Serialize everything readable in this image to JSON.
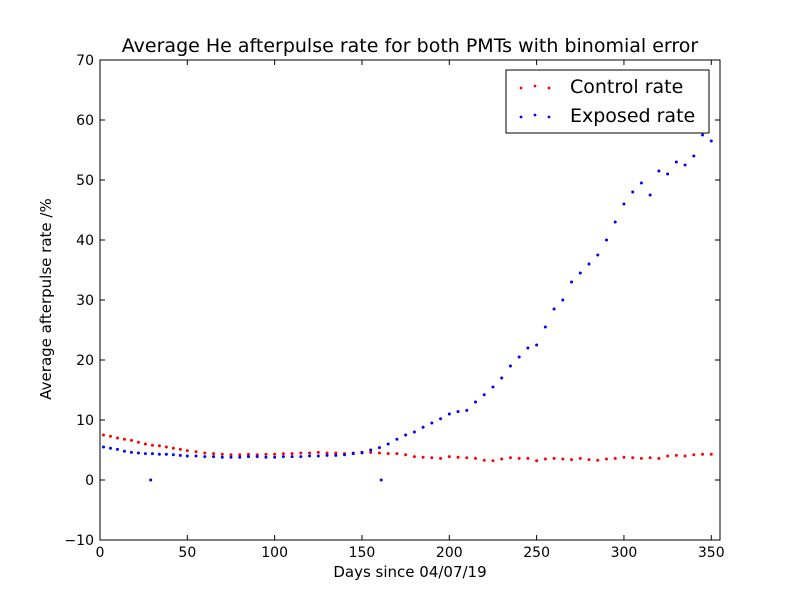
{
  "chart_data": {
    "type": "scatter",
    "title": "Average He afterpulse rate for both PMTs with binomial error",
    "xlabel": "Days since 04/07/19",
    "ylabel": "Average afterpulse rate /%",
    "xlim": [
      0,
      355
    ],
    "ylim": [
      -10,
      70
    ],
    "x_ticks": [
      0,
      50,
      100,
      150,
      200,
      250,
      300,
      350
    ],
    "y_ticks": [
      -10,
      0,
      10,
      20,
      30,
      40,
      50,
      60,
      70
    ],
    "x_tick_labels": [
      "0",
      "50",
      "100",
      "150",
      "200",
      "250",
      "300",
      "350"
    ],
    "y_tick_labels": [
      "−10",
      "0",
      "10",
      "20",
      "30",
      "40",
      "50",
      "60",
      "70"
    ],
    "grid": false,
    "legend_position": "top-right",
    "series": [
      {
        "name": "Control rate",
        "color": "#ff0000",
        "x": [
          2,
          6,
          10,
          14,
          18,
          22,
          26,
          30,
          34,
          38,
          42,
          46,
          50,
          55,
          60,
          65,
          70,
          75,
          80,
          85,
          90,
          95,
          100,
          105,
          110,
          115,
          120,
          125,
          130,
          135,
          140,
          145,
          150,
          155,
          160,
          165,
          170,
          175,
          180,
          185,
          190,
          195,
          200,
          205,
          210,
          215,
          220,
          225,
          230,
          235,
          240,
          245,
          250,
          255,
          260,
          265,
          270,
          275,
          280,
          285,
          290,
          295,
          300,
          305,
          310,
          315,
          320,
          325,
          330,
          335,
          340,
          345,
          350
        ],
        "y": [
          7.5,
          7.3,
          7.0,
          6.8,
          6.6,
          6.3,
          6.0,
          5.8,
          5.7,
          5.5,
          5.3,
          5.1,
          4.9,
          4.7,
          4.5,
          4.4,
          4.3,
          4.2,
          4.2,
          4.3,
          4.2,
          4.3,
          4.3,
          4.4,
          4.4,
          4.5,
          4.5,
          4.6,
          4.5,
          4.5,
          4.4,
          4.5,
          4.5,
          4.6,
          4.5,
          4.4,
          4.4,
          4.2,
          3.9,
          3.8,
          3.7,
          3.6,
          3.9,
          3.8,
          3.7,
          3.6,
          3.3,
          3.2,
          3.5,
          3.7,
          3.6,
          3.6,
          3.2,
          3.5,
          3.6,
          3.5,
          3.4,
          3.6,
          3.4,
          3.3,
          3.5,
          3.6,
          3.8,
          3.7,
          3.6,
          3.7,
          3.6,
          4.0,
          4.1,
          4.0,
          4.2,
          4.3,
          4.3
        ]
      },
      {
        "name": "Exposed rate",
        "color": "#0000ff",
        "x": [
          2,
          6,
          10,
          14,
          18,
          22,
          26,
          30,
          34,
          38,
          42,
          46,
          50,
          55,
          60,
          65,
          70,
          75,
          80,
          85,
          90,
          95,
          100,
          105,
          110,
          115,
          120,
          125,
          130,
          135,
          140,
          145,
          150,
          155,
          160,
          161,
          165,
          170,
          175,
          180,
          185,
          190,
          195,
          200,
          205,
          210,
          215,
          220,
          225,
          230,
          235,
          240,
          245,
          250,
          255,
          260,
          265,
          270,
          275,
          280,
          285,
          290,
          295,
          300,
          305,
          310,
          315,
          320,
          325,
          330,
          335,
          340,
          345,
          350,
          29
        ],
        "y": [
          5.5,
          5.3,
          5.1,
          4.8,
          4.6,
          4.5,
          4.4,
          4.4,
          4.3,
          4.3,
          4.2,
          4.1,
          4.0,
          4.0,
          3.9,
          3.9,
          3.8,
          3.8,
          3.8,
          3.9,
          3.9,
          3.8,
          3.8,
          3.9,
          3.9,
          3.9,
          4.0,
          4.0,
          4.1,
          4.1,
          4.2,
          4.4,
          4.6,
          5.0,
          5.4,
          0.0,
          6.0,
          6.8,
          7.5,
          8.0,
          8.8,
          9.5,
          10.2,
          11.0,
          11.4,
          11.6,
          13.0,
          14.2,
          15.5,
          17.0,
          19.0,
          20.5,
          22.0,
          22.5,
          25.5,
          28.5,
          30.0,
          33.0,
          34.5,
          36.0,
          37.5,
          40.0,
          43.0,
          46.0,
          48.0,
          49.5,
          47.5,
          51.5,
          51.0,
          53.0,
          52.5,
          54.0,
          57.5,
          56.5,
          0.0
        ]
      }
    ]
  }
}
